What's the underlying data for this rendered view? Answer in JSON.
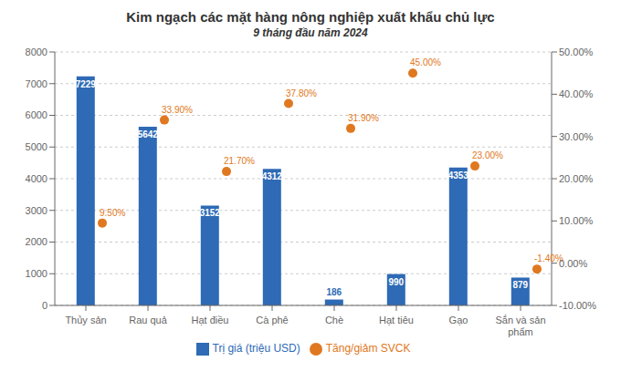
{
  "chart_data": {
    "type": "bar",
    "title": "Kim ngạch các mặt hàng nông nghiệp xuất khẩu chủ lực",
    "subtitle": "9 tháng đầu năm 2024",
    "categories": [
      "Thủy sản",
      "Rau quả",
      "Hạt điều",
      "Cà phê",
      "Chè",
      "Hạt tiêu",
      "Gạo",
      "Sắn và sản\nphẩm"
    ],
    "series": [
      {
        "name": "Trị giá (triệu USD)",
        "type": "bar",
        "color": "#2E6AB5",
        "values": [
          7229,
          5642,
          3152,
          4312,
          186,
          990,
          4353,
          879
        ]
      },
      {
        "name": "Tăng/giảm SVCK",
        "type": "scatter",
        "color": "#E07820",
        "marker": "circle",
        "axis": "y2",
        "values": [
          9.5,
          33.9,
          21.7,
          37.8,
          31.9,
          45.0,
          23.0,
          -1.4
        ],
        "value_labels": [
          "9.50%",
          "33.90%",
          "21.70%",
          "37.80%",
          "31.90%",
          "45.00%",
          "23.00%",
          "-1.40%"
        ]
      }
    ],
    "ylim": [
      0,
      8000
    ],
    "yticks": [
      0,
      1000,
      2000,
      3000,
      4000,
      5000,
      6000,
      7000,
      8000
    ],
    "y2lim": [
      -10,
      50
    ],
    "y2ticks": [
      {
        "value": -10,
        "label": "-10.00%"
      },
      {
        "value": 0,
        "label": "0.00%"
      },
      {
        "value": 10,
        "label": "10.00%"
      },
      {
        "value": 20,
        "label": "20.00%"
      },
      {
        "value": 30,
        "label": "30.00%"
      },
      {
        "value": 40,
        "label": "40.00%"
      },
      {
        "value": 50,
        "label": "50.00%"
      }
    ],
    "grid": true,
    "legend": "bottom",
    "data_labels": true
  }
}
